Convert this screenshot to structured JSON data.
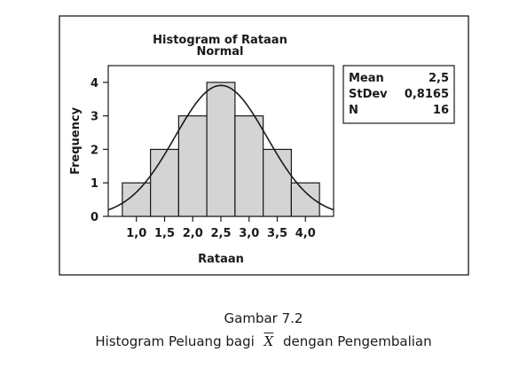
{
  "chart_data": {
    "type": "bar",
    "title": "Histogram of Rataan",
    "subtitle": "Normal",
    "xlabel": "Rataan",
    "ylabel": "Frequency",
    "bins": [
      0.75,
      1.25,
      1.75,
      2.25,
      2.75,
      3.25,
      3.75,
      4.25
    ],
    "categories": [
      "1,0",
      "1,5",
      "2,0",
      "2,5",
      "3,0",
      "3,5",
      "4,0"
    ],
    "x": [
      1.0,
      1.5,
      2.0,
      2.5,
      3.0,
      3.5,
      4.0
    ],
    "values": [
      1,
      2,
      3,
      4,
      3,
      2,
      1
    ],
    "xlim": [
      0.5,
      4.5
    ],
    "ylim": [
      0,
      4.5
    ],
    "yticks": [
      0,
      1,
      2,
      3,
      4
    ],
    "bar_color": "#d4d4d4",
    "edge_color": "#1a1a1a",
    "fit": {
      "type": "normal",
      "mean": 2.5,
      "stdev": 0.8165,
      "n": 16
    },
    "stats": [
      {
        "label": "Mean",
        "value": "2,5"
      },
      {
        "label": "StDev",
        "value": "0,8165"
      },
      {
        "label": "N",
        "value": "16"
      }
    ]
  },
  "caption": {
    "line1": "Gambar 7.2",
    "line2_before": "Histogram Peluang bagi",
    "line2_symbol": "X",
    "line2_after": "dengan Pengembalian"
  }
}
